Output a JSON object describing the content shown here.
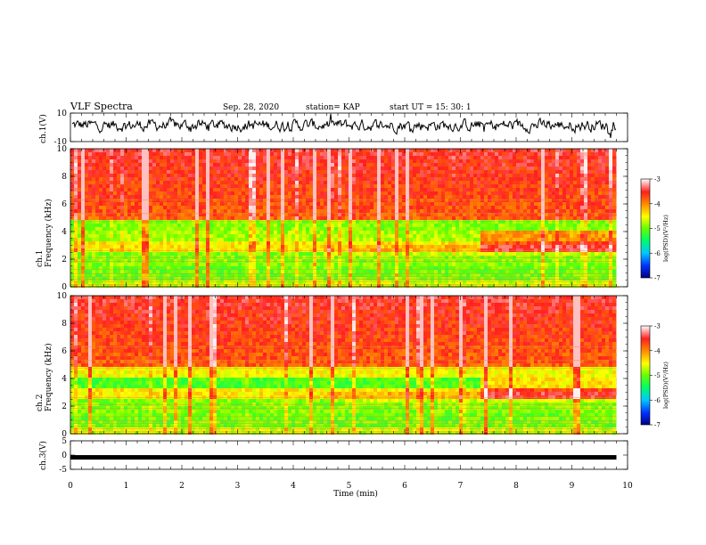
{
  "header": {
    "title": "VLF Spectra",
    "date": "Sep. 28, 2020",
    "station": "station= KAP",
    "start_ut": "start  UT =   15: 30: 1"
  },
  "chart_data": [
    {
      "type": "line",
      "panel": "ch1-waveform",
      "ylabel": "ch.1(V)",
      "ylim": [
        -10,
        10
      ],
      "ytick_labels": [
        "10",
        "-10"
      ],
      "xlim": [
        0,
        10
      ]
    },
    {
      "type": "heatmap",
      "panel": "ch1-spectrogram",
      "ylabel": "ch.1\nFrequency  (kHz)",
      "ylim": [
        0,
        10
      ],
      "ytick_labels": [
        "0",
        "2",
        "4",
        "6",
        "8",
        "10"
      ],
      "xlim": [
        0,
        10
      ],
      "data_end_min": 9.8,
      "colorbar": {
        "label": "log(PSD)(V²/Hz)",
        "range": [
          -7,
          -3
        ],
        "tick_labels": [
          "-7",
          "-6",
          "-5",
          "-4",
          "-3"
        ]
      }
    },
    {
      "type": "heatmap",
      "panel": "ch2-spectrogram",
      "ylabel": "ch.2\nFrequency  (kHz)",
      "ylim": [
        0,
        10
      ],
      "ytick_labels": [
        "0",
        "2",
        "4",
        "6",
        "8",
        "10"
      ],
      "xlim": [
        0,
        10
      ],
      "data_end_min": 9.8,
      "colorbar": {
        "label": "log(PSD)(V²/Hz)",
        "range": [
          -7,
          -3
        ],
        "tick_labels": [
          "-7",
          "-6",
          "-5",
          "-4",
          "-3"
        ]
      }
    },
    {
      "type": "line",
      "panel": "ch3-waveform",
      "ylabel": "ch.3(V)",
      "ylim": [
        -5,
        5
      ],
      "ytick_labels": [
        "5",
        "0",
        "-5"
      ],
      "xlim": [
        0,
        10
      ],
      "xlabel": "Time  (min)",
      "xtick_labels": [
        "0",
        "1",
        "2",
        "3",
        "4",
        "5",
        "6",
        "7",
        "8",
        "9",
        "10"
      ]
    }
  ]
}
